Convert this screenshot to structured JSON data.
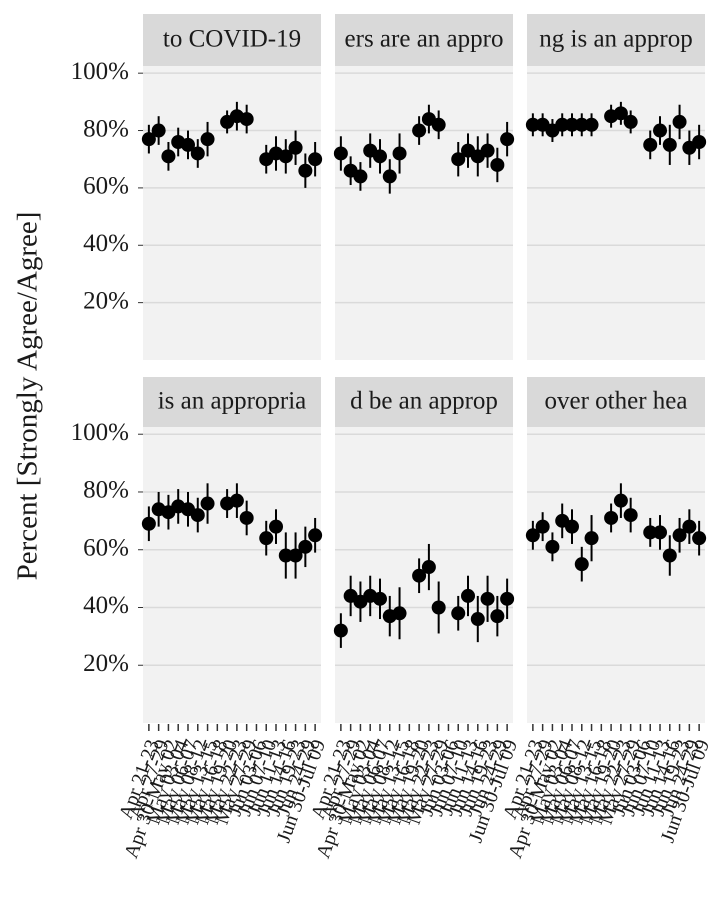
{
  "chart_data": {
    "type": "faceted-pointrange",
    "y_label": "Percent [Strongly Agree/Agree]",
    "ylim": [
      0,
      102.5
    ],
    "yticks": [
      {
        "value": 20,
        "label": "20%"
      },
      {
        "value": 40,
        "label": "40%"
      },
      {
        "value": 60,
        "label": "60%"
      },
      {
        "value": 80,
        "label": "80%"
      },
      {
        "value": 100,
        "label": "100%"
      }
    ],
    "grid": true,
    "color": "#000000",
    "categories": [
      "Apr 21-23",
      "Apr 27-29",
      "Apr 30-May 02",
      "May 03-04",
      "May 06-07",
      "May 08-12",
      "May 13-15",
      "May 16-18",
      "May 19-20",
      "May 22-23",
      "May 27-29",
      "Jun 03-06",
      "Jun 07-10",
      "Jun 11-13",
      "Jun 14-16",
      "Jun 19-23",
      "Jun 24-29",
      "Jun 30-Jul 09"
    ],
    "panels": [
      {
        "title": "to COVID-19",
        "values": [
          77,
          80,
          71,
          76,
          75,
          72,
          77,
          null,
          83,
          85,
          84,
          null,
          70,
          72,
          71,
          74,
          66,
          70
        ],
        "errors": [
          5,
          5,
          5,
          5,
          5,
          5,
          6,
          null,
          4,
          5,
          5,
          null,
          5,
          6,
          6,
          6,
          6,
          6
        ]
      },
      {
        "title": "ers are an appro",
        "values": [
          72,
          66,
          64,
          73,
          71,
          64,
          72,
          null,
          80,
          84,
          82,
          null,
          70,
          73,
          71,
          73,
          68,
          77
        ],
        "errors": [
          6,
          5,
          5,
          6,
          6,
          6,
          7,
          null,
          5,
          5,
          5,
          null,
          6,
          6,
          7,
          6,
          6,
          6
        ]
      },
      {
        "title": "ng is an approp",
        "values": [
          82,
          82,
          80,
          82,
          82,
          82,
          82,
          null,
          85,
          86,
          83,
          null,
          75,
          80,
          75,
          83,
          74,
          76
        ],
        "errors": [
          4,
          4,
          4,
          4,
          4,
          4,
          4,
          null,
          4,
          4,
          4,
          null,
          5,
          5,
          7,
          6,
          6,
          6
        ]
      },
      {
        "title": "is an appropria",
        "values": [
          69,
          74,
          73,
          75,
          74,
          72,
          76,
          null,
          76,
          77,
          71,
          null,
          64,
          68,
          58,
          58,
          61,
          65
        ],
        "errors": [
          6,
          6,
          6,
          6,
          6,
          6,
          7,
          null,
          5,
          6,
          6,
          null,
          6,
          6,
          8,
          8,
          7,
          6
        ]
      },
      {
        "title": "d be an approp",
        "values": [
          32,
          44,
          42,
          44,
          43,
          37,
          38,
          null,
          51,
          54,
          40,
          null,
          38,
          44,
          36,
          43,
          37,
          43
        ],
        "errors": [
          6,
          7,
          7,
          7,
          7,
          7,
          9,
          null,
          6,
          8,
          9,
          null,
          6,
          7,
          8,
          8,
          7,
          7
        ]
      },
      {
        "title": "over other hea",
        "values": [
          65,
          68,
          61,
          70,
          68,
          55,
          64,
          null,
          71,
          77,
          72,
          null,
          66,
          66,
          58,
          65,
          68,
          64
        ],
        "errors": [
          5,
          5,
          5,
          6,
          6,
          6,
          8,
          null,
          5,
          6,
          6,
          null,
          5,
          6,
          7,
          6,
          6,
          6
        ]
      }
    ]
  }
}
